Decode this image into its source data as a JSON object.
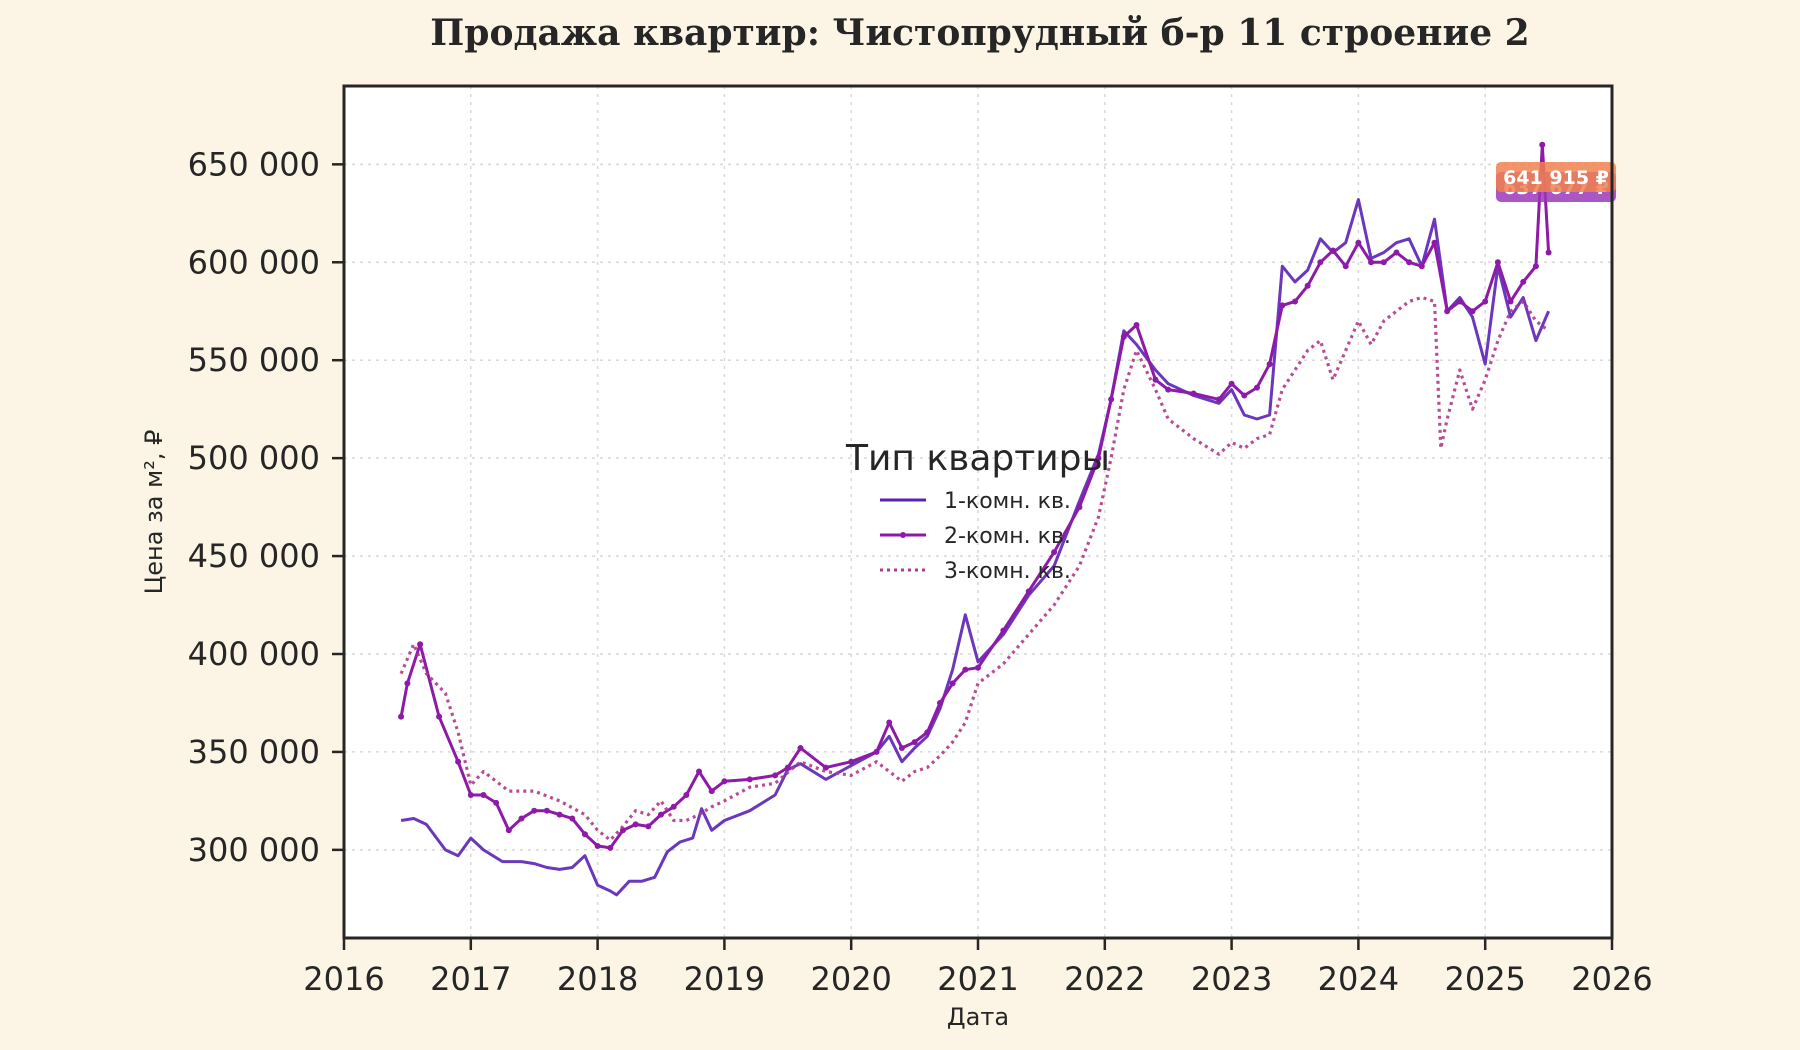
{
  "chart_data": {
    "type": "line",
    "title": "Продажа квартир: Чистопрудный б-р 11 строение 2",
    "xlabel": "Дата",
    "ylabel": "Цена за м², ₽",
    "xlim": [
      2016.0,
      2026.0
    ],
    "ylim": [
      255000,
      690000
    ],
    "x_ticks": [
      2016,
      2017,
      2018,
      2019,
      2020,
      2021,
      2022,
      2023,
      2024,
      2025,
      2026
    ],
    "x_tick_labels": [
      "2016",
      "2017",
      "2018",
      "2019",
      "2020",
      "2021",
      "2022",
      "2023",
      "2024",
      "2025",
      "2026"
    ],
    "y_ticks": [
      300000,
      350000,
      400000,
      450000,
      500000,
      550000,
      600000,
      650000
    ],
    "y_tick_labels": [
      "300 000",
      "350 000",
      "400 000",
      "450 000",
      "500 000",
      "550 000",
      "600 000",
      "650 000"
    ],
    "grid": true,
    "legend": {
      "title": "Тип квартиры",
      "position": "center"
    },
    "series": [
      {
        "name": "1-комн. кв.",
        "color": "#5b21b6",
        "style": "solid",
        "x": [
          2016.45,
          2016.55,
          2016.65,
          2016.8,
          2016.9,
          2017.0,
          2017.1,
          2017.25,
          2017.4,
          2017.5,
          2017.6,
          2017.7,
          2017.8,
          2017.9,
          2018.0,
          2018.1,
          2018.15,
          2018.25,
          2018.35,
          2018.45,
          2018.55,
          2018.65,
          2018.75,
          2018.82,
          2018.9,
          2019.0,
          2019.2,
          2019.4,
          2019.5,
          2019.6,
          2019.8,
          2020.0,
          2020.2,
          2020.3,
          2020.4,
          2020.5,
          2020.6,
          2020.7,
          2020.8,
          2020.9,
          2021.0,
          2021.2,
          2021.4,
          2021.6,
          2021.8,
          2021.95,
          2022.05,
          2022.15,
          2022.25,
          2022.4,
          2022.5,
          2022.7,
          2022.9,
          2023.0,
          2023.1,
          2023.2,
          2023.3,
          2023.4,
          2023.5,
          2023.6,
          2023.7,
          2023.8,
          2023.9,
          2024.0,
          2024.1,
          2024.2,
          2024.3,
          2024.4,
          2024.5,
          2024.6,
          2024.7,
          2024.8,
          2024.9,
          2025.0,
          2025.1,
          2025.2,
          2025.3,
          2025.4,
          2025.5
        ],
        "values": [
          315000,
          316000,
          313000,
          300000,
          297000,
          306000,
          300000,
          294000,
          294000,
          293000,
          291000,
          290000,
          291000,
          297000,
          282000,
          279000,
          277000,
          284000,
          284000,
          286000,
          299000,
          304000,
          306000,
          321000,
          310000,
          315000,
          320000,
          328000,
          341000,
          344000,
          336000,
          343000,
          350000,
          358000,
          345000,
          352000,
          358000,
          372000,
          392000,
          420000,
          396000,
          410000,
          430000,
          445000,
          478000,
          502000,
          530000,
          565000,
          558000,
          545000,
          538000,
          532000,
          528000,
          535000,
          522000,
          520000,
          522000,
          598000,
          590000,
          596000,
          612000,
          605000,
          610000,
          632000,
          602000,
          605000,
          610000,
          612000,
          598000,
          622000,
          575000,
          582000,
          572000,
          548000,
          598000,
          572000,
          582000,
          560000,
          575000
        ]
      },
      {
        "name": "2-комн. кв.",
        "color": "#8e1aa8",
        "style": "solid-marker",
        "x": [
          2016.45,
          2016.5,
          2016.6,
          2016.75,
          2016.9,
          2017.0,
          2017.1,
          2017.2,
          2017.3,
          2017.4,
          2017.5,
          2017.6,
          2017.7,
          2017.8,
          2017.9,
          2018.0,
          2018.1,
          2018.2,
          2018.3,
          2018.4,
          2018.5,
          2018.6,
          2018.7,
          2018.8,
          2018.9,
          2019.0,
          2019.2,
          2019.4,
          2019.5,
          2019.6,
          2019.8,
          2020.0,
          2020.2,
          2020.3,
          2020.4,
          2020.5,
          2020.6,
          2020.7,
          2020.8,
          2020.9,
          2021.0,
          2021.2,
          2021.4,
          2021.6,
          2021.8,
          2021.95,
          2022.05,
          2022.15,
          2022.25,
          2022.4,
          2022.5,
          2022.7,
          2022.9,
          2023.0,
          2023.1,
          2023.2,
          2023.3,
          2023.4,
          2023.5,
          2023.6,
          2023.7,
          2023.8,
          2023.9,
          2024.0,
          2024.1,
          2024.2,
          2024.3,
          2024.4,
          2024.5,
          2024.6,
          2024.7,
          2024.8,
          2024.9,
          2025.0,
          2025.1,
          2025.2,
          2025.3,
          2025.4,
          2025.45,
          2025.5
        ],
        "values": [
          368000,
          385000,
          405000,
          368000,
          345000,
          328000,
          328000,
          324000,
          310000,
          316000,
          320000,
          320000,
          318000,
          316000,
          308000,
          302000,
          301000,
          310000,
          313000,
          312000,
          318000,
          322000,
          328000,
          340000,
          330000,
          335000,
          336000,
          338000,
          342000,
          352000,
          342000,
          345000,
          350000,
          365000,
          352000,
          355000,
          360000,
          375000,
          385000,
          392000,
          393000,
          412000,
          432000,
          452000,
          475000,
          500000,
          530000,
          562000,
          568000,
          540000,
          535000,
          533000,
          530000,
          538000,
          532000,
          536000,
          548000,
          578000,
          580000,
          588000,
          600000,
          606000,
          598000,
          610000,
          600000,
          600000,
          605000,
          600000,
          598000,
          610000,
          575000,
          580000,
          575000,
          580000,
          600000,
          580000,
          590000,
          598000,
          660000,
          605000
        ]
      },
      {
        "name": "3-комн. кв.",
        "color": "#b03a8c",
        "style": "dotted",
        "x": [
          2016.45,
          2016.55,
          2016.65,
          2016.8,
          2016.9,
          2017.0,
          2017.1,
          2017.3,
          2017.5,
          2017.7,
          2017.9,
          2018.0,
          2018.1,
          2018.2,
          2018.3,
          2018.4,
          2018.5,
          2018.6,
          2018.7,
          2018.8,
          2018.9,
          2019.0,
          2019.2,
          2019.4,
          2019.6,
          2019.8,
          2020.0,
          2020.2,
          2020.3,
          2020.4,
          2020.5,
          2020.6,
          2020.7,
          2020.8,
          2020.9,
          2021.0,
          2021.2,
          2021.4,
          2021.6,
          2021.8,
          2021.95,
          2022.05,
          2022.15,
          2022.25,
          2022.4,
          2022.5,
          2022.7,
          2022.9,
          2023.0,
          2023.1,
          2023.2,
          2023.3,
          2023.4,
          2023.5,
          2023.6,
          2023.7,
          2023.8,
          2023.9,
          2024.0,
          2024.1,
          2024.2,
          2024.3,
          2024.4,
          2024.5,
          2024.6,
          2024.65,
          2024.7,
          2024.8,
          2024.9,
          2025.0,
          2025.1,
          2025.2,
          2025.3,
          2025.4,
          2025.5
        ],
        "values": [
          390000,
          405000,
          390000,
          380000,
          360000,
          333000,
          340000,
          330000,
          330000,
          325000,
          318000,
          310000,
          305000,
          312000,
          320000,
          318000,
          325000,
          315000,
          315000,
          318000,
          322000,
          325000,
          332000,
          334000,
          345000,
          340000,
          338000,
          345000,
          340000,
          335000,
          340000,
          342000,
          348000,
          355000,
          365000,
          385000,
          395000,
          410000,
          425000,
          445000,
          470000,
          500000,
          535000,
          555000,
          535000,
          520000,
          510000,
          502000,
          508000,
          505000,
          510000,
          512000,
          535000,
          545000,
          555000,
          560000,
          540000,
          555000,
          570000,
          558000,
          570000,
          575000,
          580000,
          582000,
          580000,
          505000,
          520000,
          545000,
          525000,
          540000,
          560000,
          575000,
          580000,
          570000,
          565000
        ]
      }
    ],
    "annotations": [
      {
        "text": "641 915 ₽",
        "series": "1-комн. кв.",
        "color": "#f08050"
      },
      {
        "text": "637 677 ₽",
        "series": "2-комн. кв.",
        "color": "#9b3ab8"
      }
    ]
  }
}
